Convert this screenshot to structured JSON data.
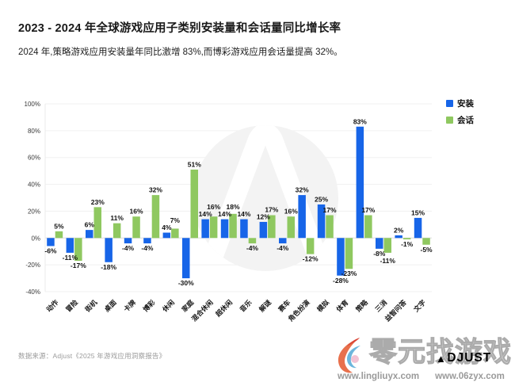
{
  "header": {
    "title": "2023 - 2024 年全球游戏应用子类别安装量和会话量同比增长率",
    "subtitle": "2024 年,策略游戏应用安装量年同比激增 83%,而博彩游戏应用会话量提高 32%。"
  },
  "legend": {
    "install": "安装",
    "session": "会话"
  },
  "colors": {
    "install": "#1765e8",
    "session": "#8fc860",
    "grid": "#f0f0f0",
    "zero_line": "#dcdcdc",
    "axis_label": "#3a3a3a",
    "value_label": "#111111",
    "watermark": "#f3f3f3"
  },
  "chart_data": {
    "type": "bar",
    "title": "2023 - 2024 年全球游戏应用子类别安装量和会话量同比增长率",
    "xlabel": "",
    "ylabel": "",
    "value_suffix": "%",
    "categories": [
      "动作",
      "冒险",
      "街机",
      "桌面",
      "卡牌",
      "博彩",
      "休闲",
      "家庭",
      "混合休闲",
      "超休闲",
      "音乐",
      "解谜",
      "赛车",
      "角色扮演",
      "模拟",
      "体育",
      "策略",
      "三消",
      "益智问答",
      "文字"
    ],
    "series": [
      {
        "name": "安装",
        "color_key": "install",
        "values": [
          -6,
          -11,
          6,
          -18,
          -4,
          -4,
          4,
          -30,
          14,
          14,
          14,
          12,
          -4,
          32,
          25,
          -28,
          83,
          -8,
          2,
          15
        ]
      },
      {
        "name": "会话",
        "color_key": "session",
        "values": [
          5,
          -17,
          23,
          11,
          16,
          32,
          7,
          51,
          16,
          18,
          -4,
          17,
          16,
          -12,
          17,
          -23,
          17,
          -11,
          -1,
          -5
        ]
      }
    ],
    "ylim": [
      -40,
      100
    ],
    "yticks": [
      100,
      80,
      60,
      40,
      20,
      0,
      -20,
      -40
    ],
    "grid": true,
    "legend_position": "top-right"
  },
  "footer": {
    "source": "数据来源：Adjust《2025 年游戏应用洞察报告》"
  },
  "watermark_br": {
    "site_name": "零元找游戏",
    "brand_triangle": "▲",
    "brand_rest": "DJUST",
    "urls": [
      "www.lingliuyx.com",
      "www.06zyx.com"
    ]
  }
}
